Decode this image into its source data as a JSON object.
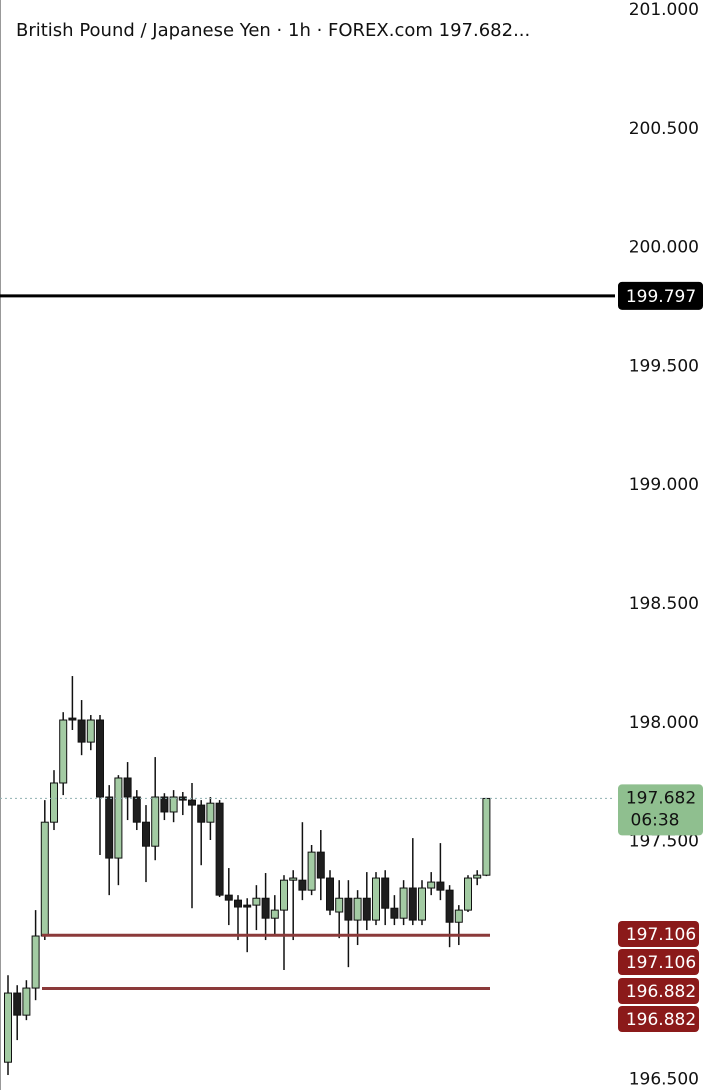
{
  "chart_data": {
    "type": "candlestick",
    "title": "British Pound / Japanese Yen  ·  1h  ·  FOREX.com  197.682...",
    "up_color": "#a3cba3",
    "down_color": "#1e1e1e",
    "ylim": [
      196.455,
      201.042
    ],
    "yticks": [
      {
        "value": 196.5,
        "label": "196.500"
      },
      {
        "value": 197.5,
        "label": "197.500"
      },
      {
        "value": 198,
        "label": "198.000"
      },
      {
        "value": 198.5,
        "label": "198.500"
      },
      {
        "value": 199,
        "label": "199.000"
      },
      {
        "value": 199.5,
        "label": "199.500"
      },
      {
        "value": 200,
        "label": "200.000"
      },
      {
        "value": 200.5,
        "label": "200.500"
      },
      {
        "value": 201,
        "label": "201.000"
      }
    ],
    "open": [
      196.572,
      196.863,
      196.77,
      196.884,
      197.103,
      197.582,
      197.747,
      198.02,
      198.012,
      197.919,
      198.012,
      197.688,
      197.431,
      197.768,
      197.688,
      197.582,
      197.481,
      197.688,
      197.625,
      197.688,
      197.675,
      197.654,
      197.582,
      197.662,
      197.275,
      197.254,
      197.233,
      197.233,
      197.262,
      197.178,
      197.212,
      197.338,
      197.338,
      197.296,
      197.456,
      197.347,
      197.204,
      197.262,
      197.17,
      197.262,
      197.17,
      197.347,
      197.22,
      197.178,
      197.305,
      197.17,
      197.305,
      197.33,
      197.296,
      197.161,
      197.212,
      197.347,
      197.359
    ],
    "high": [
      196.938,
      196.896,
      196.917,
      197.212,
      197.675,
      197.801,
      198.045,
      198.197,
      198.096,
      198.033,
      198.033,
      197.738,
      197.78,
      197.835,
      197.717,
      197.654,
      197.856,
      197.704,
      197.717,
      197.709,
      197.747,
      197.675,
      197.688,
      197.675,
      197.389,
      197.275,
      197.262,
      197.317,
      197.368,
      197.275,
      197.359,
      197.38,
      197.582,
      197.486,
      197.549,
      197.38,
      197.338,
      197.338,
      197.296,
      197.372,
      197.372,
      197.38,
      197.275,
      197.338,
      197.515,
      197.338,
      197.372,
      197.494,
      197.317,
      197.233,
      197.359,
      197.38,
      197.682
    ],
    "low": [
      196.518,
      196.665,
      196.749,
      196.833,
      197.086,
      197.549,
      197.696,
      197.97,
      197.864,
      197.885,
      197.444,
      197.275,
      197.317,
      197.591,
      197.549,
      197.33,
      197.422,
      197.591,
      197.582,
      197.612,
      197.22,
      197.401,
      197.507,
      197.267,
      197.149,
      197.086,
      197.035,
      197.128,
      197.086,
      197.107,
      196.96,
      197.086,
      197.254,
      197.275,
      197.254,
      197.191,
      197.094,
      196.972,
      197.065,
      197.128,
      197.149,
      197.149,
      197.149,
      197.149,
      197.149,
      197.149,
      197.275,
      197.254,
      197.056,
      197.065,
      197.204,
      197.317,
      197.355
    ],
    "close": [
      196.863,
      196.77,
      196.884,
      197.103,
      197.582,
      197.747,
      198.012,
      198.012,
      197.919,
      198.012,
      197.688,
      197.431,
      197.768,
      197.688,
      197.582,
      197.481,
      197.688,
      197.625,
      197.688,
      197.675,
      197.654,
      197.582,
      197.662,
      197.275,
      197.254,
      197.225,
      197.225,
      197.262,
      197.178,
      197.212,
      197.338,
      197.347,
      197.296,
      197.456,
      197.347,
      197.212,
      197.262,
      197.17,
      197.262,
      197.17,
      197.347,
      197.22,
      197.178,
      197.305,
      197.17,
      197.305,
      197.33,
      197.296,
      197.161,
      197.212,
      197.347,
      197.359,
      197.682
    ],
    "lines": [
      {
        "value": 199.797,
        "color": "#000000"
      },
      {
        "value": 197.106,
        "color": "#8b3a3a"
      },
      {
        "value": 196.882,
        "color": "#8b3a3a"
      }
    ],
    "last_price": {
      "value": 197.682,
      "countdown": "06:38",
      "color": "#8fbf8f"
    }
  }
}
